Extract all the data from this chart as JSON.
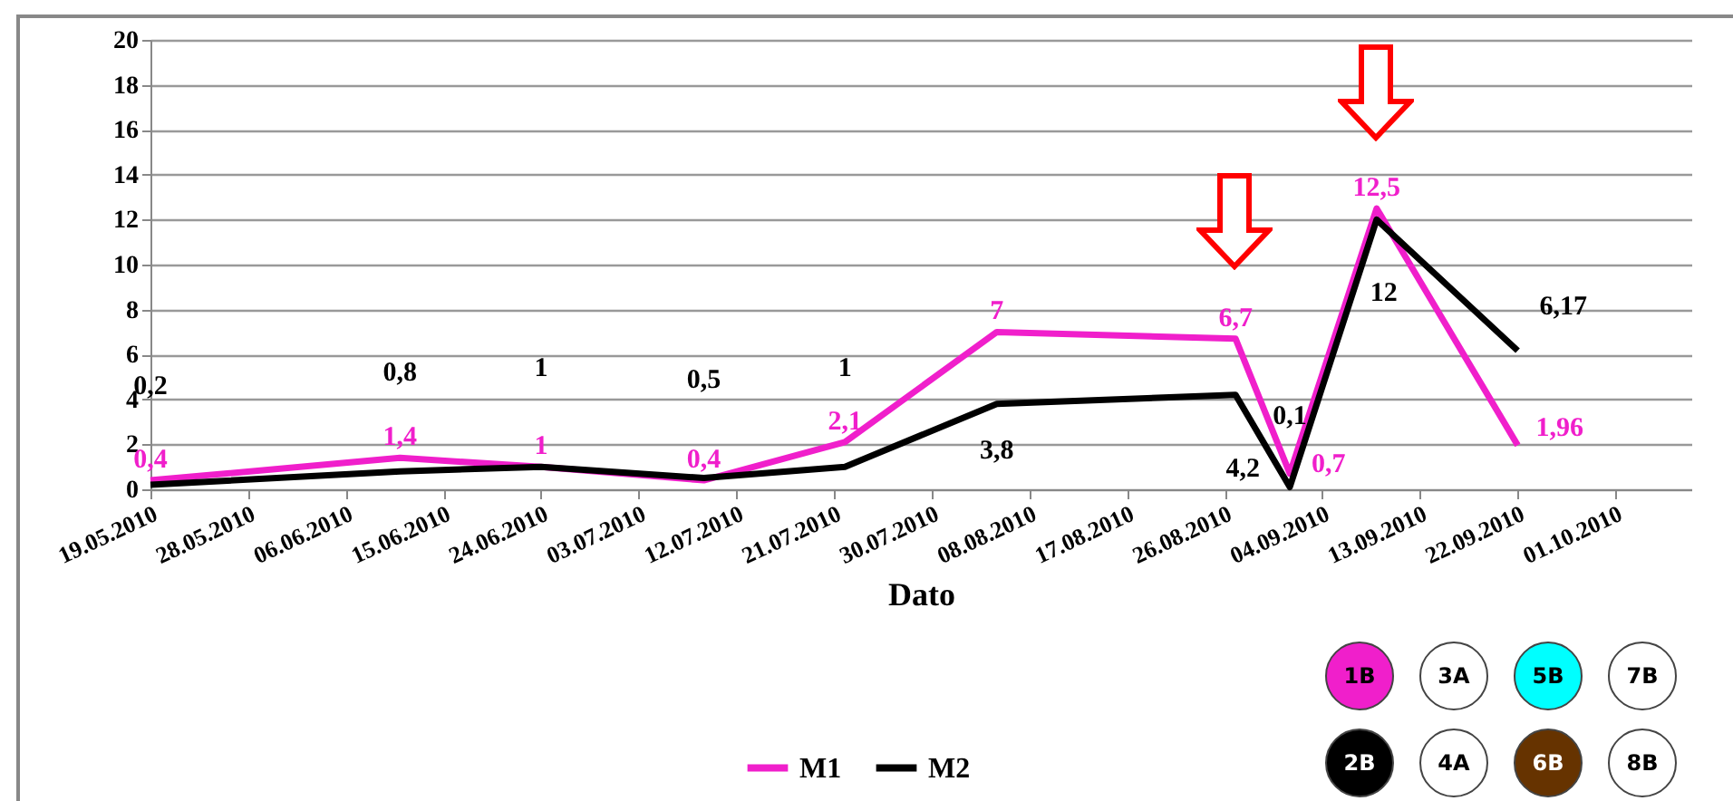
{
  "chart_data": {
    "type": "line",
    "xlabel": "Dato",
    "x": [
      "2010-05-19",
      "2010-06-11",
      "2010-06-24",
      "2010-07-09",
      "2010-07-22",
      "2010-08-05",
      "2010-08-27",
      "2010-09-01",
      "2010-09-09",
      "2010-09-22"
    ],
    "series": [
      {
        "name": "M1",
        "color": "#f01fcb",
        "values": [
          0.4,
          1.4,
          1,
          0.4,
          2.1,
          7,
          6.7,
          0.7,
          12.5,
          1.96
        ],
        "value_labels": [
          "0,4",
          "1,4",
          "1",
          "0,4",
          "2,1",
          "7",
          "6,7",
          "0,7",
          "12,5",
          "1,96"
        ]
      },
      {
        "name": "M2",
        "color": "#000000",
        "values": [
          0.2,
          0.8,
          1,
          0.5,
          1,
          3.8,
          4.2,
          0.1,
          12,
          6.17
        ],
        "value_labels": [
          "0,2",
          "0,8",
          "1",
          "0,5",
          "1",
          "3,8",
          "4,2",
          "0,1",
          "12",
          "6,17"
        ]
      }
    ],
    "xlim": [
      "2010-05-19",
      "2010-10-08"
    ],
    "xticks": [
      {
        "value": "2010-05-19",
        "label": "19.05.2010"
      },
      {
        "value": "2010-05-28",
        "label": "28.05.2010"
      },
      {
        "value": "2010-06-06",
        "label": "06.06.2010"
      },
      {
        "value": "2010-06-15",
        "label": "15.06.2010"
      },
      {
        "value": "2010-06-24",
        "label": "24.06.2010"
      },
      {
        "value": "2010-07-03",
        "label": "03.07.2010"
      },
      {
        "value": "2010-07-12",
        "label": "12.07.2010"
      },
      {
        "value": "2010-07-21",
        "label": "21.07.2010"
      },
      {
        "value": "2010-07-30",
        "label": "30.07.2010"
      },
      {
        "value": "2010-08-08",
        "label": "08.08.2010"
      },
      {
        "value": "2010-08-17",
        "label": "17.08.2010"
      },
      {
        "value": "2010-08-26",
        "label": "26.08.2010"
      },
      {
        "value": "2010-09-04",
        "label": "04.09.2010"
      },
      {
        "value": "2010-09-13",
        "label": "13.09.2010"
      },
      {
        "value": "2010-09-22",
        "label": "22.09.2010"
      },
      {
        "value": "2010-10-01",
        "label": "01.10.2010"
      }
    ],
    "ylim": [
      0,
      20
    ],
    "yticks": [
      0,
      2,
      4,
      6,
      8,
      10,
      12,
      14,
      16,
      18,
      20
    ],
    "grid": "y",
    "legend": "bottom",
    "marker": "none",
    "line_style": "solid",
    "annotations": [
      "1B",
      "3A",
      "5B",
      "7B",
      "2B",
      "4A",
      "6B",
      "8B"
    ]
  }
}
